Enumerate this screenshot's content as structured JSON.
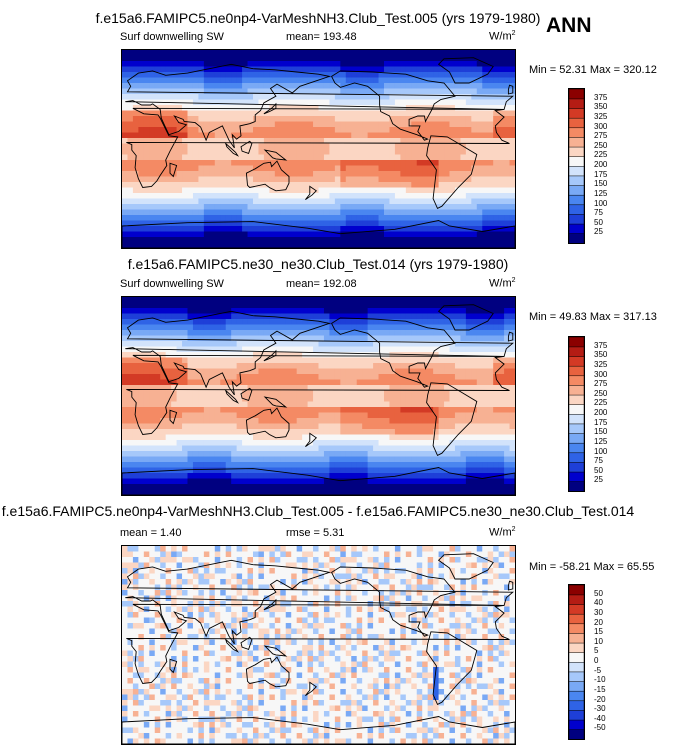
{
  "season": "ANN",
  "panels": [
    {
      "title": "f.e15a6.FAMIPC5.ne0np4-VarMeshNH3.Club_Test.005 (yrs 1979-1980)",
      "left_label": "Surf downwelling SW",
      "center_label": "mean=  193.48",
      "unit_base": "W/m",
      "unit_sup": "2",
      "minmax": "Min =  52.31 Max = 320.12",
      "kind": "abs"
    },
    {
      "title": "f.e15a6.FAMIPC5.ne30_ne30.Club_Test.014 (yrs 1979-1980)",
      "left_label": "Surf downwelling SW",
      "center_label": "mean=  192.08",
      "unit_base": "W/m",
      "unit_sup": "2",
      "minmax": "Min =  49.83 Max = 317.13",
      "kind": "abs"
    },
    {
      "title": "f.e15a6.FAMIPC5.ne0np4-VarMeshNH3.Club_Test.005 - f.e15a6.FAMIPC5.ne30_ne30.Club_Test.014",
      "left_label": "mean =   1.40",
      "center_label": "rmse =   5.31",
      "unit_base": "W/m",
      "unit_sup": "2",
      "minmax": "Min = -58.21 Max =  65.55",
      "kind": "diff"
    }
  ],
  "chart_data": [
    {
      "type": "heatmap",
      "title": "f.e15a6.FAMIPC5.ne0np4-VarMeshNH3.Club_Test.005 (yrs 1979-1980)",
      "variable": "Surf downwelling SW",
      "units": "W/m2",
      "mean": 193.48,
      "min": 52.31,
      "max": 320.12,
      "colorbar_levels": [
        25,
        50,
        75,
        100,
        125,
        150,
        175,
        200,
        225,
        250,
        275,
        300,
        325,
        350,
        375
      ],
      "colorbar_colors": [
        "#000080",
        "#0000cd",
        "#1e3fd8",
        "#2f63e6",
        "#4a86f0",
        "#79a9f5",
        "#a6c8fa",
        "#d2e3fb",
        "#f7f7f7",
        "#fbd6c3",
        "#f7b193",
        "#f48a64",
        "#e8623f",
        "#d33a25",
        "#b41c14",
        "#8b0000"
      ]
    },
    {
      "type": "heatmap",
      "title": "f.e15a6.FAMIPC5.ne30_ne30.Club_Test.014 (yrs 1979-1980)",
      "variable": "Surf downwelling SW",
      "units": "W/m2",
      "mean": 192.08,
      "min": 49.83,
      "max": 317.13,
      "colorbar_levels": [
        25,
        50,
        75,
        100,
        125,
        150,
        175,
        200,
        225,
        250,
        275,
        300,
        325,
        350,
        375
      ],
      "colorbar_colors": [
        "#000080",
        "#0000cd",
        "#1e3fd8",
        "#2f63e6",
        "#4a86f0",
        "#79a9f5",
        "#a6c8fa",
        "#d2e3fb",
        "#f7f7f7",
        "#fbd6c3",
        "#f7b193",
        "#f48a64",
        "#e8623f",
        "#d33a25",
        "#b41c14",
        "#8b0000"
      ]
    },
    {
      "type": "heatmap",
      "title": "f.e15a6.FAMIPC5.ne0np4-VarMeshNH3.Club_Test.005 - f.e15a6.FAMIPC5.ne30_ne30.Club_Test.014",
      "units": "W/m2",
      "mean": 1.4,
      "rmse": 5.31,
      "min": -58.21,
      "max": 65.55,
      "colorbar_levels": [
        -50,
        -40,
        -30,
        -20,
        -15,
        -10,
        -5,
        0,
        5,
        10,
        15,
        20,
        30,
        40,
        50
      ],
      "colorbar_colors": [
        "#000080",
        "#0000cd",
        "#1e3fd8",
        "#2f63e6",
        "#4a86f0",
        "#79a9f5",
        "#a6c8fa",
        "#d2e3fb",
        "#f7f7f7",
        "#fbd6c3",
        "#f7b193",
        "#f48a64",
        "#e8623f",
        "#d33a25",
        "#b41c14",
        "#8b0000"
      ]
    }
  ]
}
